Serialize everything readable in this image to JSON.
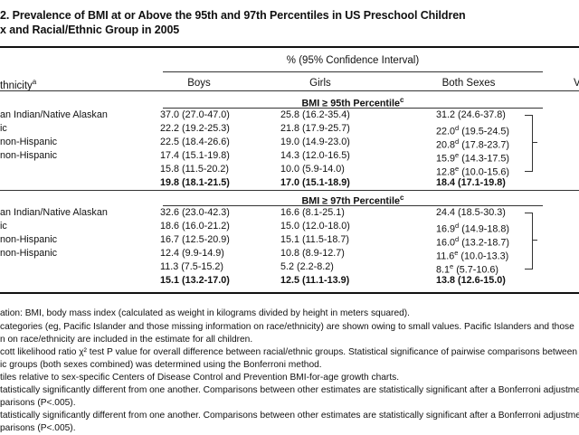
{
  "title_line1": "2. Prevalence of BMI at or Above the 95th and 97th Percentiles in US Preschool Children",
  "title_line2": "x and Racial/Ethnic Group in 2005",
  "header": {
    "spanner": "% (95% Confidence Interval)",
    "col_ethnicity": "thnicity",
    "col_ethnicity_sup": "a",
    "col_boys": "Boys",
    "col_girls": "Girls",
    "col_both": "Both Sexes",
    "col_right_partial": "V"
  },
  "sections": [
    {
      "label_main": "BMI ≥ 95th Percentile",
      "label_sup": "c",
      "rows": [
        {
          "group": "an Indian/Native Alaskan",
          "boys": "37.0 (27.0-47.0)",
          "girls": "25.8 (16.2-35.4)",
          "both": "31.2 (24.6-37.8)",
          "both_sup": ""
        },
        {
          "group": "ic",
          "boys": "22.2 (19.2-25.3)",
          "girls": "21.8 (17.9-25.7)",
          "both": "22.0",
          "both_sup": "d",
          "both_ci": "(19.5-24.5)"
        },
        {
          "group": "non-Hispanic",
          "boys": "22.5 (18.4-26.6)",
          "girls": "19.0 (14.9-23.0)",
          "both": "20.8",
          "both_sup": "d",
          "both_ci": "(17.8-23.7)"
        },
        {
          "group": "non-Hispanic",
          "boys": "17.4 (15.1-19.8)",
          "girls": "14.3 (12.0-16.5)",
          "both": "15.9",
          "both_sup": "e",
          "both_ci": "(14.3-17.5)"
        },
        {
          "group": "",
          "boys": "15.8 (11.5-20.2)",
          "girls": "10.0 (5.9-14.0)",
          "both": "12.8",
          "both_sup": "e",
          "both_ci": "(10.0-15.6)"
        }
      ],
      "total": {
        "boys": "19.8 (18.1-21.5)",
        "girls": "17.0 (15.1-18.9)",
        "both": "18.4 (17.1-19.8)"
      }
    },
    {
      "label_main": "BMI ≥ 97th Percentile",
      "label_sup": "c",
      "rows": [
        {
          "group": "an Indian/Native Alaskan",
          "boys": "32.6 (23.0-42.3)",
          "girls": "16.6 (8.1-25.1)",
          "both": "24.4 (18.5-30.3)",
          "both_sup": ""
        },
        {
          "group": "ic",
          "boys": "18.6 (16.0-21.2)",
          "girls": "15.0 (12.0-18.0)",
          "both": "16.9",
          "both_sup": "d",
          "both_ci": "(14.9-18.8)"
        },
        {
          "group": "non-Hispanic",
          "boys": "16.7 (12.5-20.9)",
          "girls": "15.1 (11.5-18.7)",
          "both": "16.0",
          "both_sup": "d",
          "both_ci": "(13.2-18.7)"
        },
        {
          "group": "non-Hispanic",
          "boys": "12.4 (9.9-14.9)",
          "girls": "10.8 (8.9-12.7)",
          "both": "11.6",
          "both_sup": "e",
          "both_ci": "(10.0-13.3)"
        },
        {
          "group": "",
          "boys": "11.3 (7.5-15.2)",
          "girls": "5.2 (2.2-8.2)",
          "both": "8.1",
          "both_sup": "e",
          "both_ci": "(5.7-10.6)"
        }
      ],
      "total": {
        "boys": "15.1 (13.2-17.0)",
        "girls": "12.5 (11.1-13.9)",
        "both": "13.8 (12.6-15.0)"
      }
    }
  ],
  "footnotes": [
    "ation: BMI, body mass index (calculated as weight in kilograms divided by height in meters squared).",
    "categories (eg, Pacific Islander and those missing information on race/ethnicity) are shown owing to small values. Pacific Islanders and those",
    "n on race/ethnicity are included in the estimate for all children.",
    "cott likelihood ratio χ² test P value for overall difference between racial/ethnic groups. Statistical significance of pairwise comparisons between",
    "ic groups (both sexes combined) was determined using the Bonferroni method.",
    "tiles relative to sex-specific Centers of Disease Control and Prevention BMI-for-age growth charts.",
    "tatistically significantly different from one another. Comparisons between other estimates are statistically significant after a Bonferroni adjustme",
    "parisons (P<.005).",
    "tatistically significantly different from one another. Comparisons between other estimates are statistically significant after a Bonferroni adjustme",
    "parisons (P<.005)."
  ]
}
